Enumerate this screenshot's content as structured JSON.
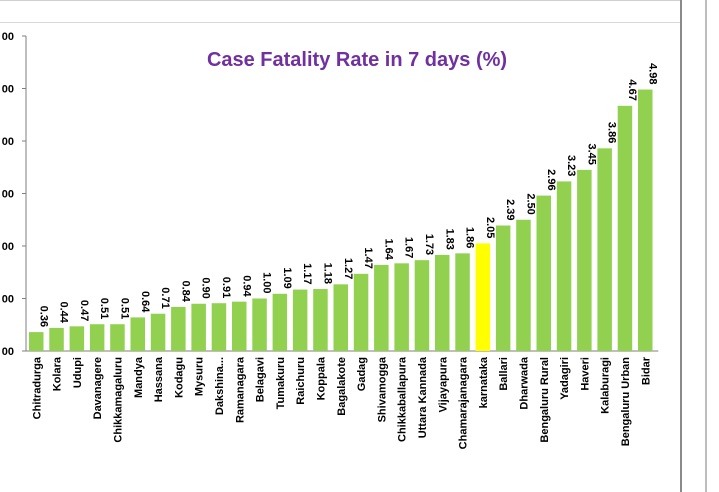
{
  "chart_data": {
    "type": "bar",
    "title": "Case Fatality Rate in 7 days (%)",
    "xlabel": "",
    "ylabel": "",
    "ylim": [
      0,
      6
    ],
    "y_ticks": [
      "00",
      "00",
      "00",
      "00",
      "00",
      "00",
      "00"
    ],
    "grid": false,
    "legend": "none",
    "categories": [
      "Chitradurga",
      "Kolara",
      "Udupi",
      "Davanagere",
      "Chikkamagaluru",
      "Mandya",
      "Hassana",
      "Kodagu",
      "Mysuru",
      "Dakshina...",
      "Ramanagara",
      "Belagavi",
      "Tumakuru",
      "Raichuru",
      "Koppala",
      "Bagalakote",
      "Gadag",
      "Shivamogga",
      "Chikkaballapura",
      "Uttara Kannada",
      "Vijayapura",
      "Chamarajanagara",
      "karnataka",
      "Ballari",
      "Dharwada",
      "Bengaluru Rural",
      "Yadagiri",
      "Haveri",
      "Kalaburagi",
      "Bengaluru Urban",
      "Bidar"
    ],
    "values": [
      0.36,
      0.44,
      0.47,
      0.51,
      0.51,
      0.64,
      0.71,
      0.84,
      0.9,
      0.91,
      0.94,
      1.0,
      1.09,
      1.17,
      1.18,
      1.27,
      1.47,
      1.64,
      1.67,
      1.73,
      1.83,
      1.86,
      2.05,
      2.39,
      2.5,
      2.96,
      3.23,
      3.45,
      3.86,
      4.67,
      4.98
    ],
    "labels": [
      "0.36",
      "0.44",
      "0.47",
      "0.51",
      "0.51",
      "0.64",
      "0.71",
      "0.84",
      "0.90",
      "0.91",
      "0.94",
      "1.00",
      "1.09",
      "1.17",
      "1.18",
      "1.27",
      "1.47",
      "1.64",
      "1.67",
      "1.73",
      "1.83",
      "1.86",
      "2.05",
      "2.39",
      "2.50",
      "2.96",
      "3.23",
      "3.45",
      "3.86",
      "4.67",
      "4.98"
    ],
    "highlight_category": "karnataka",
    "colors": {
      "bar": "#92d050",
      "highlight": "#ffff00",
      "title": "#7030a0",
      "axis": "#7f7f7f"
    }
  }
}
